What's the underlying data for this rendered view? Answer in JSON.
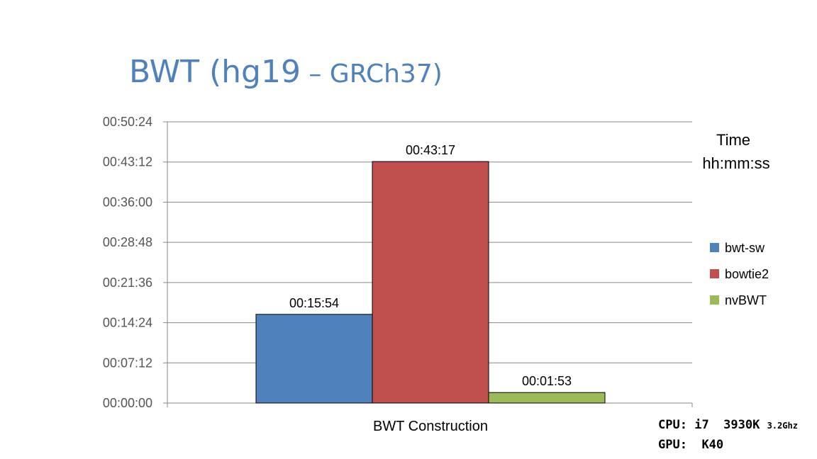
{
  "slide": {
    "title_main": "BWT (hg19",
    "title_sep": " – ",
    "title_sub": "GRCh37)",
    "title_color": "#4f81bd"
  },
  "hardware": {
    "cpu_label": "CPU:",
    "cpu_model": "i7  3930K",
    "cpu_speed": "3.2Ghz",
    "gpu_label": "GPU:",
    "gpu_model": "K40"
  },
  "chart_data": {
    "type": "bar",
    "categories": [
      "BWT Construction"
    ],
    "series": [
      {
        "name": "bwt-sw",
        "values": [
          "00:15:54"
        ],
        "seconds": [
          954
        ],
        "color": "#4f81bd"
      },
      {
        "name": "bowtie2",
        "values": [
          "00:43:17"
        ],
        "seconds": [
          2597
        ],
        "color": "#c0504d"
      },
      {
        "name": "nvBWT",
        "values": [
          "00:01:53"
        ],
        "seconds": [
          113
        ],
        "color": "#9bbb59"
      }
    ],
    "yticks": [
      "00:00:00",
      "00:07:12",
      "00:14:24",
      "00:21:36",
      "00:28:48",
      "00:36:00",
      "00:43:12",
      "00:50:24"
    ],
    "ylim_seconds": [
      0,
      3024
    ],
    "ylabel_line1": "Time",
    "ylabel_line2": "hh:mm:ss",
    "legend_position": "right",
    "grid": true
  }
}
